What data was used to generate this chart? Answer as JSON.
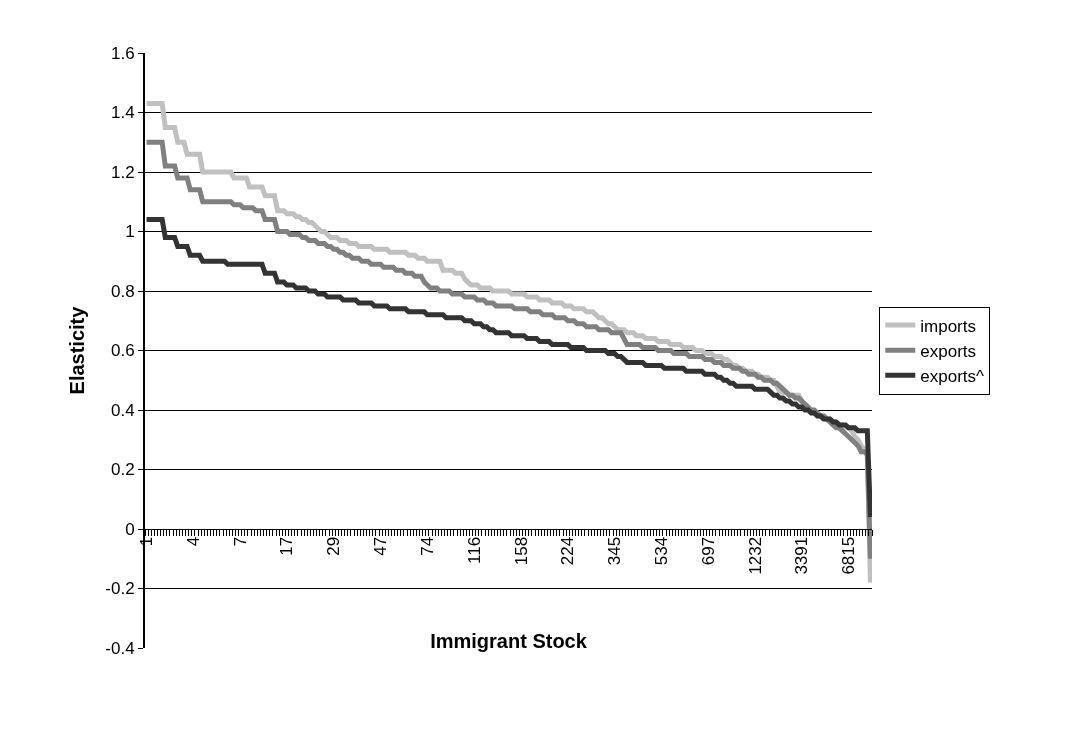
{
  "chart_data": {
    "type": "line",
    "xlabel": "Immigrant Stock",
    "ylabel": "Elasticity",
    "categories": [
      "1",
      null,
      null,
      null,
      null,
      null,
      null,
      null,
      null,
      null,
      null,
      null,
      null,
      null,
      null,
      "4",
      null,
      null,
      null,
      null,
      null,
      null,
      null,
      null,
      null,
      null,
      null,
      null,
      null,
      null,
      "7",
      null,
      null,
      null,
      null,
      null,
      null,
      null,
      null,
      null,
      null,
      null,
      null,
      null,
      null,
      "17",
      null,
      null,
      null,
      null,
      null,
      null,
      null,
      null,
      null,
      null,
      null,
      null,
      null,
      null,
      "29",
      null,
      null,
      null,
      null,
      null,
      null,
      null,
      null,
      null,
      null,
      null,
      null,
      null,
      null,
      "47",
      null,
      null,
      null,
      null,
      null,
      null,
      null,
      null,
      null,
      null,
      null,
      null,
      null,
      null,
      "74",
      null,
      null,
      null,
      null,
      null,
      null,
      null,
      null,
      null,
      null,
      null,
      null,
      null,
      null,
      "116",
      null,
      null,
      null,
      null,
      null,
      null,
      null,
      null,
      null,
      null,
      null,
      null,
      null,
      null,
      "158",
      null,
      null,
      null,
      null,
      null,
      null,
      null,
      null,
      null,
      null,
      null,
      null,
      null,
      null,
      "224",
      null,
      null,
      null,
      null,
      null,
      null,
      null,
      null,
      null,
      null,
      null,
      null,
      null,
      null,
      "345",
      null,
      null,
      null,
      null,
      null,
      null,
      null,
      null,
      null,
      null,
      null,
      null,
      null,
      null,
      "534",
      null,
      null,
      null,
      null,
      null,
      null,
      null,
      null,
      null,
      null,
      null,
      null,
      null,
      null,
      "697",
      null,
      null,
      null,
      null,
      null,
      null,
      null,
      null,
      null,
      null,
      null,
      null,
      null,
      null,
      "1232",
      null,
      null,
      null,
      null,
      null,
      null,
      null,
      null,
      null,
      null,
      null,
      null,
      null,
      null,
      "3391",
      null,
      null,
      null,
      null,
      null,
      null,
      null,
      null,
      null,
      null,
      null,
      null,
      null,
      null,
      "6815",
      null,
      null,
      null,
      null,
      null,
      null,
      null
    ],
    "ylim": [
      -0.4,
      1.6
    ],
    "yticks": [
      -0.4,
      -0.2,
      0,
      0.2,
      0.4,
      0.6,
      0.8,
      1,
      1.2,
      1.4,
      1.6
    ],
    "grid": "y",
    "legend": "right",
    "series": [
      {
        "name": "imports",
        "color": "#c0c0c0",
        "values": [
          1.43,
          1.43,
          1.43,
          1.43,
          1.43,
          1.43,
          1.35,
          1.35,
          1.35,
          1.35,
          1.3,
          1.3,
          1.3,
          1.26,
          1.26,
          1.26,
          1.26,
          1.26,
          1.2,
          1.2,
          1.2,
          1.2,
          1.2,
          1.2,
          1.2,
          1.2,
          1.2,
          1.2,
          1.18,
          1.18,
          1.18,
          1.18,
          1.18,
          1.15,
          1.15,
          1.15,
          1.15,
          1.15,
          1.12,
          1.12,
          1.12,
          1.12,
          1.07,
          1.07,
          1.07,
          1.06,
          1.06,
          1.06,
          1.05,
          1.05,
          1.04,
          1.04,
          1.03,
          1.03,
          1.02,
          1.01,
          1.0,
          1.0,
          0.99,
          0.98,
          0.98,
          0.98,
          0.97,
          0.97,
          0.97,
          0.96,
          0.96,
          0.96,
          0.95,
          0.95,
          0.95,
          0.95,
          0.95,
          0.94,
          0.94,
          0.94,
          0.94,
          0.94,
          0.93,
          0.93,
          0.93,
          0.93,
          0.93,
          0.93,
          0.92,
          0.92,
          0.92,
          0.91,
          0.91,
          0.91,
          0.9,
          0.9,
          0.9,
          0.9,
          0.9,
          0.87,
          0.87,
          0.87,
          0.87,
          0.86,
          0.86,
          0.86,
          0.84,
          0.83,
          0.82,
          0.82,
          0.82,
          0.81,
          0.81,
          0.81,
          0.81,
          0.8,
          0.8,
          0.8,
          0.8,
          0.8,
          0.8,
          0.79,
          0.79,
          0.79,
          0.79,
          0.79,
          0.78,
          0.78,
          0.78,
          0.78,
          0.77,
          0.77,
          0.77,
          0.77,
          0.76,
          0.76,
          0.76,
          0.76,
          0.75,
          0.75,
          0.75,
          0.74,
          0.74,
          0.74,
          0.74,
          0.73,
          0.73,
          0.73,
          0.72,
          0.71,
          0.71,
          0.7,
          0.69,
          0.69,
          0.68,
          0.67,
          0.67,
          0.67,
          0.66,
          0.66,
          0.66,
          0.65,
          0.65,
          0.65,
          0.64,
          0.64,
          0.64,
          0.64,
          0.63,
          0.63,
          0.63,
          0.63,
          0.62,
          0.62,
          0.62,
          0.62,
          0.61,
          0.61,
          0.61,
          0.61,
          0.6,
          0.6,
          0.6,
          0.59,
          0.59,
          0.59,
          0.58,
          0.58,
          0.58,
          0.57,
          0.57,
          0.56,
          0.55,
          0.55,
          0.54,
          0.54,
          0.53,
          0.53,
          0.53,
          0.52,
          0.52,
          0.51,
          0.51,
          0.51,
          0.5,
          0.5,
          0.48,
          0.46,
          0.46,
          0.46,
          0.45,
          0.45,
          0.45,
          0.45,
          0.43,
          0.41,
          0.4,
          0.4,
          0.39,
          0.39,
          0.38,
          0.38,
          0.37,
          0.37,
          0.36,
          0.36,
          0.35,
          0.35,
          0.34,
          0.34,
          0.33,
          0.31,
          0.3,
          0.28,
          0.27,
          0.25,
          -0.18
        ]
      },
      {
        "name": "exports",
        "color": "#808080",
        "values": [
          1.3,
          1.3,
          1.3,
          1.3,
          1.3,
          1.3,
          1.22,
          1.22,
          1.22,
          1.22,
          1.18,
          1.18,
          1.18,
          1.18,
          1.14,
          1.14,
          1.14,
          1.14,
          1.1,
          1.1,
          1.1,
          1.1,
          1.1,
          1.1,
          1.1,
          1.1,
          1.1,
          1.1,
          1.09,
          1.09,
          1.09,
          1.08,
          1.08,
          1.08,
          1.08,
          1.07,
          1.07,
          1.07,
          1.04,
          1.04,
          1.04,
          1.04,
          1.0,
          1.0,
          1.0,
          1.0,
          0.99,
          0.99,
          0.99,
          0.99,
          0.98,
          0.98,
          0.97,
          0.97,
          0.97,
          0.96,
          0.96,
          0.96,
          0.95,
          0.95,
          0.94,
          0.94,
          0.93,
          0.93,
          0.92,
          0.92,
          0.91,
          0.91,
          0.91,
          0.9,
          0.9,
          0.9,
          0.89,
          0.89,
          0.89,
          0.89,
          0.88,
          0.88,
          0.88,
          0.88,
          0.87,
          0.87,
          0.87,
          0.86,
          0.86,
          0.86,
          0.85,
          0.85,
          0.85,
          0.83,
          0.82,
          0.81,
          0.81,
          0.81,
          0.8,
          0.8,
          0.8,
          0.8,
          0.79,
          0.79,
          0.79,
          0.79,
          0.78,
          0.78,
          0.78,
          0.78,
          0.77,
          0.77,
          0.77,
          0.76,
          0.76,
          0.76,
          0.75,
          0.75,
          0.75,
          0.75,
          0.75,
          0.75,
          0.74,
          0.74,
          0.74,
          0.74,
          0.74,
          0.73,
          0.73,
          0.73,
          0.73,
          0.72,
          0.72,
          0.72,
          0.72,
          0.71,
          0.71,
          0.71,
          0.71,
          0.7,
          0.7,
          0.7,
          0.69,
          0.69,
          0.69,
          0.68,
          0.68,
          0.68,
          0.68,
          0.67,
          0.67,
          0.67,
          0.67,
          0.66,
          0.66,
          0.66,
          0.66,
          0.64,
          0.62,
          0.62,
          0.62,
          0.62,
          0.62,
          0.61,
          0.61,
          0.61,
          0.61,
          0.61,
          0.6,
          0.6,
          0.6,
          0.6,
          0.6,
          0.59,
          0.59,
          0.59,
          0.59,
          0.59,
          0.58,
          0.58,
          0.58,
          0.58,
          0.58,
          0.57,
          0.57,
          0.57,
          0.56,
          0.56,
          0.56,
          0.55,
          0.55,
          0.55,
          0.54,
          0.54,
          0.54,
          0.53,
          0.53,
          0.52,
          0.52,
          0.52,
          0.51,
          0.51,
          0.5,
          0.5,
          0.5,
          0.49,
          0.49,
          0.48,
          0.47,
          0.46,
          0.45,
          0.45,
          0.44,
          0.44,
          0.43,
          0.42,
          0.41,
          0.4,
          0.4,
          0.39,
          0.38,
          0.38,
          0.37,
          0.36,
          0.35,
          0.34,
          0.34,
          0.33,
          0.32,
          0.31,
          0.3,
          0.29,
          0.28,
          0.26,
          0.26,
          0.25,
          -0.1
        ]
      },
      {
        "name": "exports^",
        "color": "#333333",
        "values": [
          1.04,
          1.04,
          1.04,
          1.04,
          1.04,
          1.04,
          0.98,
          0.98,
          0.98,
          0.98,
          0.95,
          0.95,
          0.95,
          0.95,
          0.92,
          0.92,
          0.92,
          0.92,
          0.9,
          0.9,
          0.9,
          0.9,
          0.9,
          0.9,
          0.9,
          0.9,
          0.89,
          0.89,
          0.89,
          0.89,
          0.89,
          0.89,
          0.89,
          0.89,
          0.89,
          0.89,
          0.89,
          0.89,
          0.86,
          0.86,
          0.86,
          0.86,
          0.83,
          0.83,
          0.83,
          0.82,
          0.82,
          0.82,
          0.81,
          0.81,
          0.81,
          0.81,
          0.8,
          0.8,
          0.8,
          0.79,
          0.79,
          0.79,
          0.78,
          0.78,
          0.78,
          0.78,
          0.78,
          0.77,
          0.77,
          0.77,
          0.77,
          0.77,
          0.76,
          0.76,
          0.76,
          0.76,
          0.76,
          0.75,
          0.75,
          0.75,
          0.75,
          0.75,
          0.74,
          0.74,
          0.74,
          0.74,
          0.74,
          0.74,
          0.73,
          0.73,
          0.73,
          0.73,
          0.73,
          0.73,
          0.72,
          0.72,
          0.72,
          0.72,
          0.72,
          0.72,
          0.71,
          0.71,
          0.71,
          0.71,
          0.71,
          0.71,
          0.7,
          0.7,
          0.7,
          0.69,
          0.69,
          0.69,
          0.68,
          0.68,
          0.67,
          0.67,
          0.66,
          0.66,
          0.66,
          0.66,
          0.66,
          0.65,
          0.65,
          0.65,
          0.65,
          0.65,
          0.64,
          0.64,
          0.64,
          0.64,
          0.63,
          0.63,
          0.63,
          0.63,
          0.62,
          0.62,
          0.62,
          0.62,
          0.62,
          0.62,
          0.61,
          0.61,
          0.61,
          0.61,
          0.61,
          0.6,
          0.6,
          0.6,
          0.6,
          0.6,
          0.6,
          0.6,
          0.59,
          0.59,
          0.59,
          0.58,
          0.58,
          0.57,
          0.56,
          0.56,
          0.56,
          0.56,
          0.56,
          0.56,
          0.55,
          0.55,
          0.55,
          0.55,
          0.55,
          0.55,
          0.54,
          0.54,
          0.54,
          0.54,
          0.54,
          0.54,
          0.54,
          0.53,
          0.53,
          0.53,
          0.53,
          0.53,
          0.53,
          0.52,
          0.52,
          0.52,
          0.52,
          0.51,
          0.51,
          0.5,
          0.5,
          0.49,
          0.49,
          0.48,
          0.48,
          0.48,
          0.48,
          0.48,
          0.48,
          0.47,
          0.47,
          0.47,
          0.47,
          0.47,
          0.46,
          0.45,
          0.45,
          0.44,
          0.44,
          0.43,
          0.43,
          0.42,
          0.42,
          0.41,
          0.41,
          0.4,
          0.4,
          0.39,
          0.39,
          0.38,
          0.38,
          0.37,
          0.37,
          0.37,
          0.36,
          0.36,
          0.35,
          0.35,
          0.35,
          0.34,
          0.34,
          0.34,
          0.33,
          0.33,
          0.33,
          0.33,
          0.04
        ]
      }
    ]
  }
}
